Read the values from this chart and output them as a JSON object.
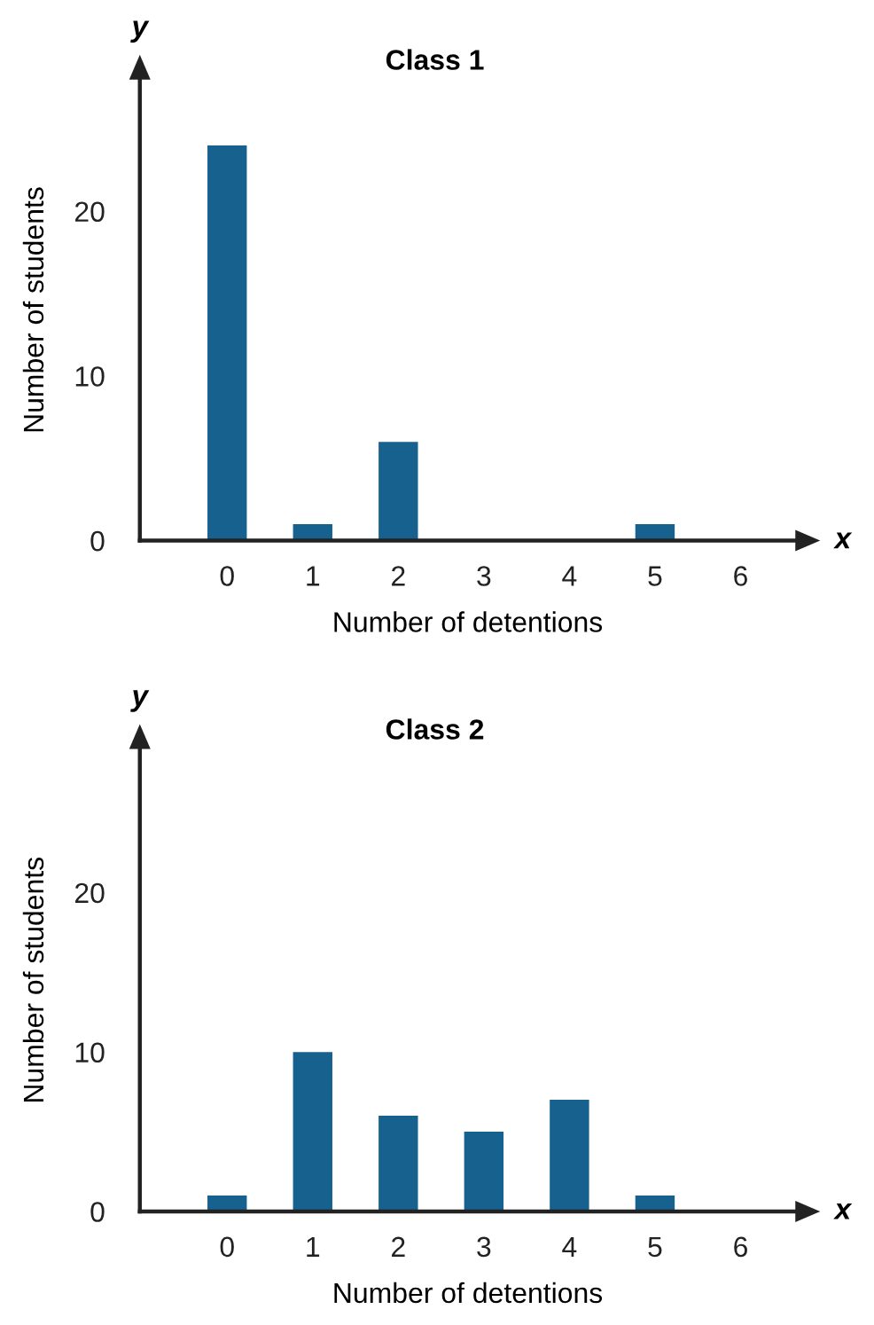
{
  "chart_data": [
    {
      "type": "bar",
      "title": "Class 1",
      "xlabel": "Number of detentions",
      "ylabel": "Number of students",
      "categories": [
        "0",
        "1",
        "2",
        "3",
        "4",
        "5",
        "6"
      ],
      "values": [
        24,
        1,
        6,
        0,
        0,
        1,
        0
      ],
      "color": "#17618f",
      "ylim": [
        0,
        28
      ],
      "yticks": [
        0,
        10,
        20
      ],
      "grid": false,
      "legend": false,
      "annotations": [
        "x",
        "y"
      ]
    },
    {
      "type": "bar",
      "title": "Class 2",
      "xlabel": "Number of detentions",
      "ylabel": "Number of students",
      "categories": [
        "0",
        "1",
        "2",
        "3",
        "4",
        "5",
        "6"
      ],
      "values": [
        1,
        10,
        6,
        5,
        7,
        1,
        0
      ],
      "color": "#17618f",
      "ylim": [
        0,
        29
      ],
      "yticks": [
        0,
        10,
        20
      ],
      "grid": false,
      "legend": false,
      "annotations": [
        "x",
        "y"
      ]
    }
  ]
}
